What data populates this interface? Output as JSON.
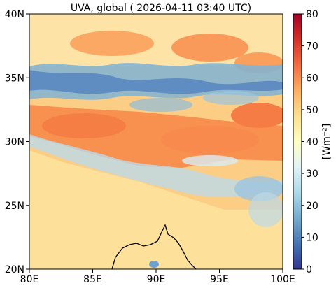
{
  "title": "UVA, global ( 2026-04-11 03:40 UTC)",
  "map": {
    "x_ticks": [
      "80E",
      "85E",
      "90E",
      "95E",
      "100E"
    ],
    "y_ticks": [
      "20N",
      "25N",
      "30N",
      "35N",
      "40N"
    ],
    "lon_range": [
      80,
      100
    ],
    "lat_range": [
      20,
      40
    ]
  },
  "colorbar": {
    "label": "[Wm⁻²]",
    "ticks": [
      "0",
      "10",
      "20",
      "30",
      "40",
      "50",
      "60",
      "70",
      "80"
    ],
    "range": [
      0,
      80
    ],
    "colormap": "RdYlBu_r",
    "colors": [
      "#313695",
      "#4575b4",
      "#74add1",
      "#abd9e9",
      "#e0f3f8",
      "#ffffbf",
      "#fee090",
      "#fdae61",
      "#f46d43",
      "#d73027",
      "#a50026"
    ]
  }
}
